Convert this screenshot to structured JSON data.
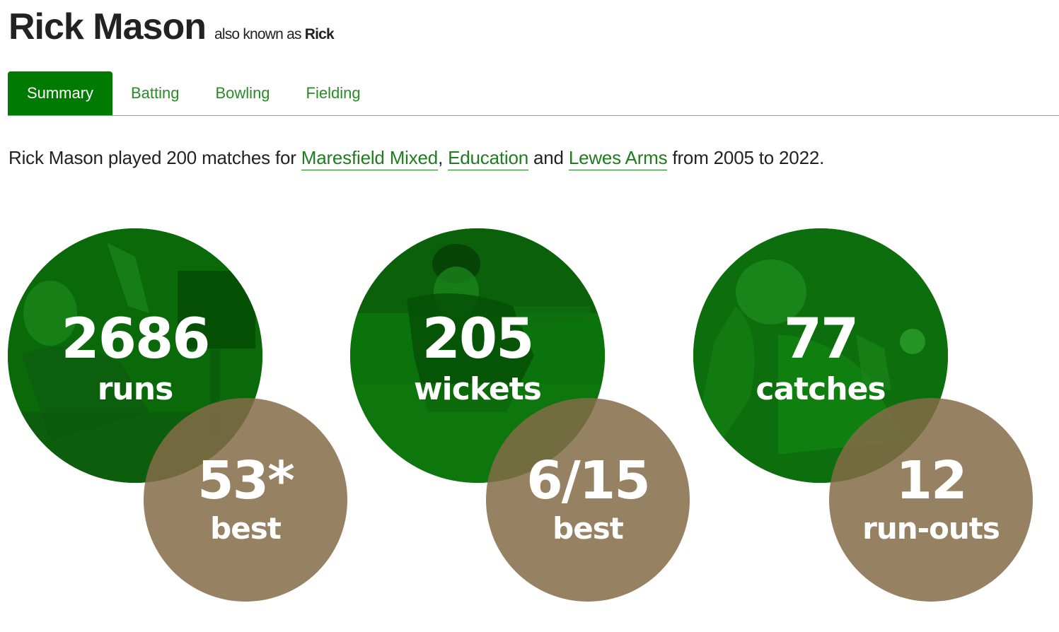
{
  "player": {
    "name": "Rick Mason",
    "aka_prefix": "also known as",
    "aka_name": "Rick"
  },
  "tabs": [
    {
      "label": "Summary",
      "active": true
    },
    {
      "label": "Batting",
      "active": false
    },
    {
      "label": "Bowling",
      "active": false
    },
    {
      "label": "Fielding",
      "active": false
    }
  ],
  "summary": {
    "prefix": "Rick Mason played 200 matches for",
    "team1": "Maresfield Mixed",
    "sep1": ",",
    "team2": "Education",
    "and_word": "and",
    "team3": "Lewes Arms",
    "suffix": "from 2005 to 2022."
  },
  "stats": {
    "runs": {
      "value": "2686",
      "label": "runs",
      "best_value": "53*",
      "best_label": "best"
    },
    "wickets": {
      "value": "205",
      "label": "wickets",
      "best_value": "6/15",
      "best_label": "best"
    },
    "catches": {
      "value": "77",
      "label": "catches",
      "extra_value": "12",
      "extra_label": "run-outs"
    }
  },
  "colors": {
    "brand_green": "#007a00",
    "link_green": "#1e7d1e",
    "circle_green": "#0a6b0a",
    "circle_brown": "#856b48"
  }
}
